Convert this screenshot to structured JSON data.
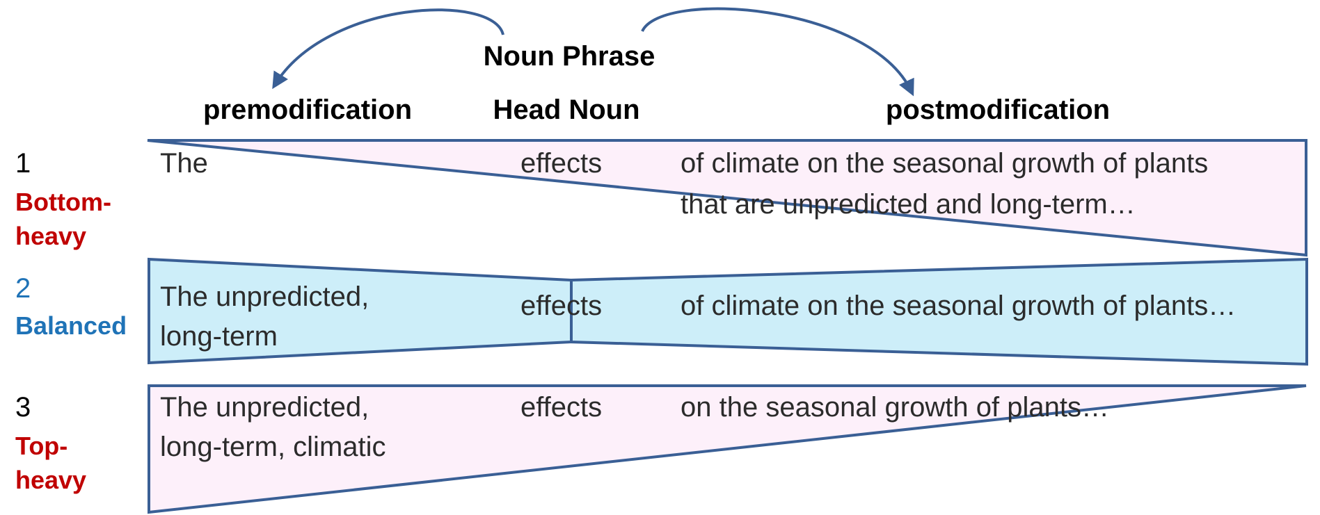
{
  "title": "Noun Phrase",
  "headers": {
    "pre": "premodification",
    "head": "Head Noun",
    "post": "postmodification"
  },
  "colors": {
    "outline": "#3a5f95",
    "pink_fill": "#fdf0fa",
    "blue_fill": "#cdeef9",
    "red_label": "#c00000",
    "blue_label": "#1f73b7"
  },
  "rows": [
    {
      "num": "1",
      "label_line1": "Bottom-",
      "label_line2": "heavy",
      "pre_line1": "The",
      "pre_line2": "",
      "head": "effects",
      "post_line1": "of climate on the seasonal growth of plants",
      "post_line2": "that are unpredicted and long-term…"
    },
    {
      "num": "2",
      "label_line1": "Balanced",
      "label_line2": "",
      "pre_line1": "The unpredicted,",
      "pre_line2": "long-term",
      "head": "effects",
      "post_line1": "of climate on the seasonal growth of plants…",
      "post_line2": ""
    },
    {
      "num": "3",
      "label_line1": "Top-",
      "label_line2": "heavy",
      "pre_line1": "The unpredicted,",
      "pre_line2": "long-term, climatic",
      "head": "effects",
      "post_line1": "on the seasonal growth of plants…",
      "post_line2": ""
    }
  ]
}
